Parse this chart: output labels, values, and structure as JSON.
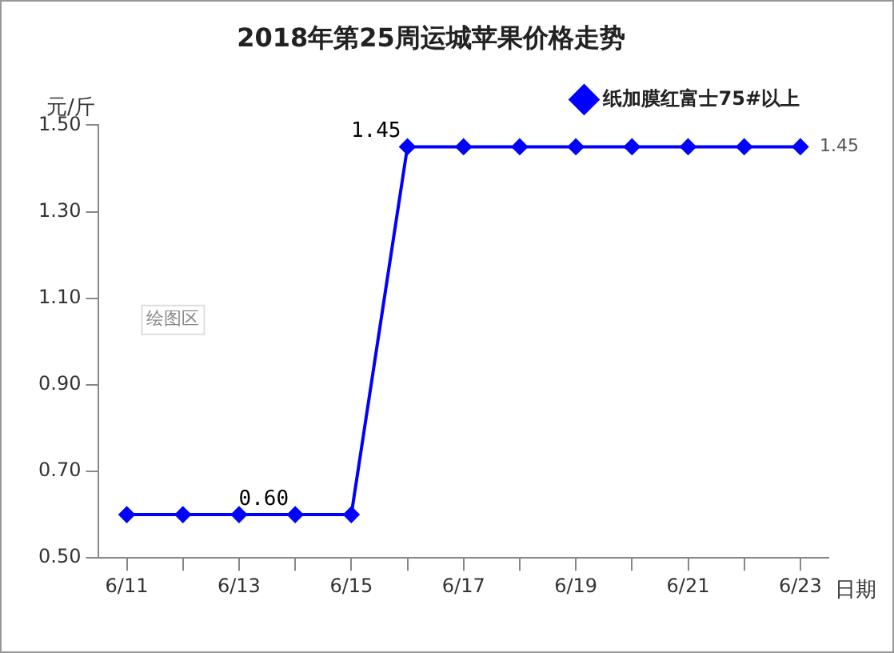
{
  "chart_data": {
    "type": "line",
    "title": "2018年第25周运城苹果价格走势",
    "ylabel": "元/斤",
    "xlabel": "日期",
    "annotations": [
      "绘图区"
    ],
    "categories": [
      "6/11",
      null,
      "6/13",
      null,
      "6/15",
      null,
      "6/17",
      null,
      "6/19",
      null,
      "6/21",
      null,
      "6/23"
    ],
    "series": [
      {
        "name": "纸加膜红富士75#以上",
        "color": "#0000ff",
        "values": [
          0.6,
          0.6,
          0.6,
          0.6,
          0.6,
          1.45,
          1.45,
          1.45,
          1.45,
          1.45,
          1.45,
          1.45,
          1.45
        ],
        "value_labels": [
          null,
          null,
          null,
          "0.60",
          null,
          "1.45",
          null,
          null,
          null,
          null,
          null,
          null,
          "1.45"
        ]
      }
    ],
    "ylim": [
      0.5,
      1.5
    ],
    "yticks": [
      {
        "value": 0.5,
        "label": "0.50"
      },
      {
        "value": 0.7,
        "label": "0.70"
      },
      {
        "value": 0.9,
        "label": "0.90"
      },
      {
        "value": 1.1,
        "label": "1.10"
      },
      {
        "value": 1.3,
        "label": "1.30"
      },
      {
        "value": 1.5,
        "label": "1.50"
      }
    ],
    "grid": false,
    "legend": "top right",
    "marker": "diamond",
    "line_style": "solid"
  }
}
